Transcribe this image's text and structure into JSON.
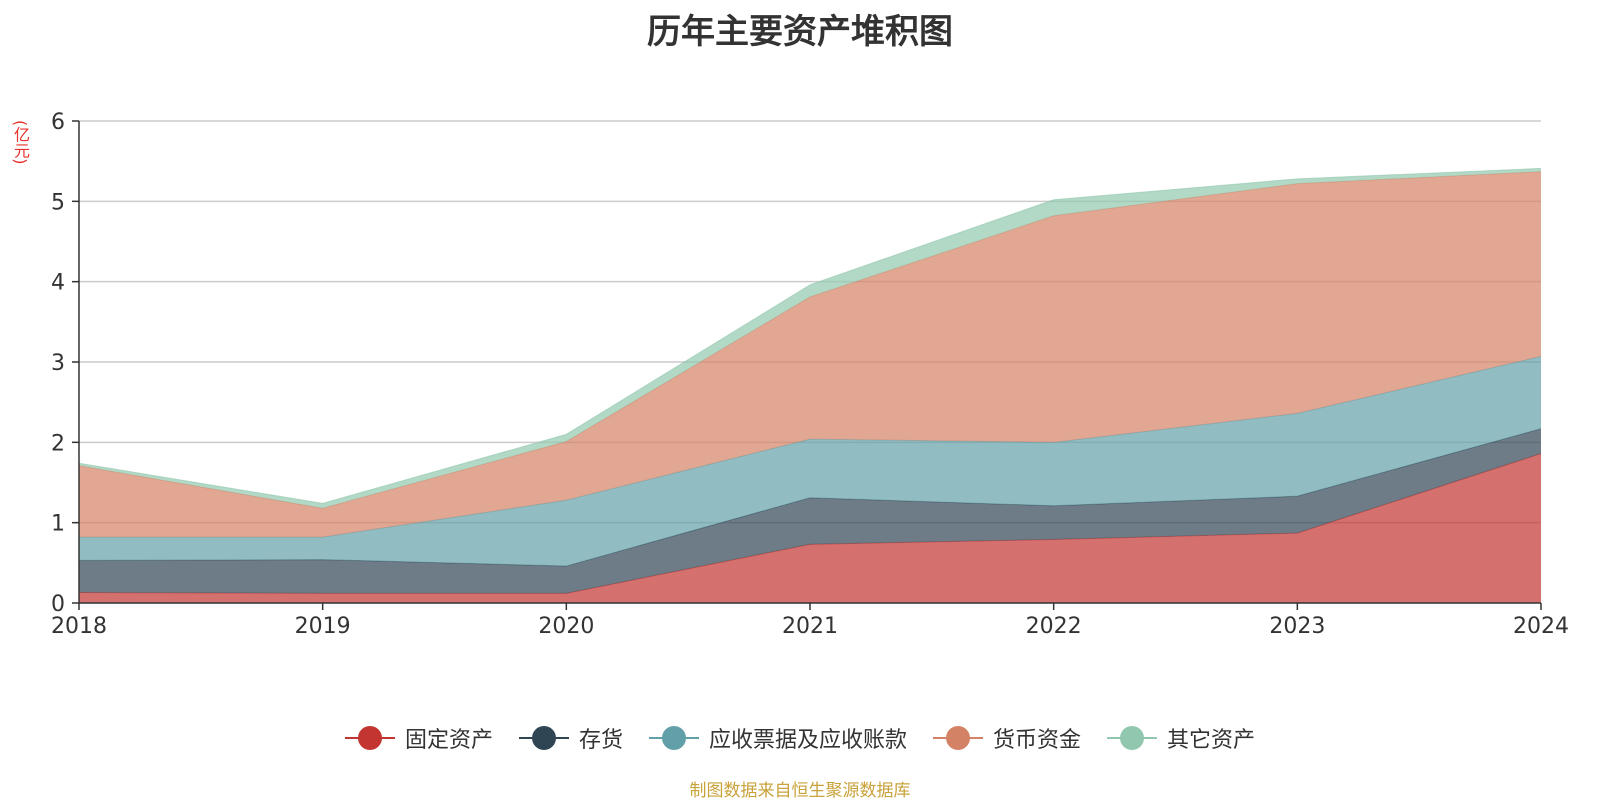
{
  "chart_data": {
    "type": "area",
    "stacked": true,
    "title": "历年主要资产堆积图",
    "unit_label": "(亿元)",
    "x": [
      "2018",
      "2019",
      "2020",
      "2021",
      "2022",
      "2023",
      "2024"
    ],
    "ylim": [
      0,
      6
    ],
    "yticks": [
      0,
      1,
      2,
      3,
      4,
      5,
      6
    ],
    "grid": true,
    "legend_position": "bottom-center",
    "series": [
      {
        "name": "固定资产",
        "color": "#c23531",
        "values": [
          0.13,
          0.12,
          0.12,
          0.73,
          0.79,
          0.87,
          1.86
        ]
      },
      {
        "name": "存货",
        "color": "#2f4554",
        "values": [
          0.4,
          0.42,
          0.34,
          0.58,
          0.42,
          0.46,
          0.31
        ]
      },
      {
        "name": "应收票据及应收账款",
        "color": "#61a0a8",
        "values": [
          0.29,
          0.28,
          0.82,
          0.73,
          0.79,
          1.03,
          0.9
        ]
      },
      {
        "name": "货币资金",
        "color": "#d48265",
        "values": [
          0.89,
          0.36,
          0.73,
          1.77,
          2.82,
          2.86,
          2.3
        ]
      },
      {
        "name": "其它资产",
        "color": "#91c7ae",
        "values": [
          0.03,
          0.06,
          0.09,
          0.15,
          0.2,
          0.06,
          0.04
        ]
      }
    ]
  },
  "footer": {
    "source": "制图数据来自恒生聚源数据库"
  }
}
